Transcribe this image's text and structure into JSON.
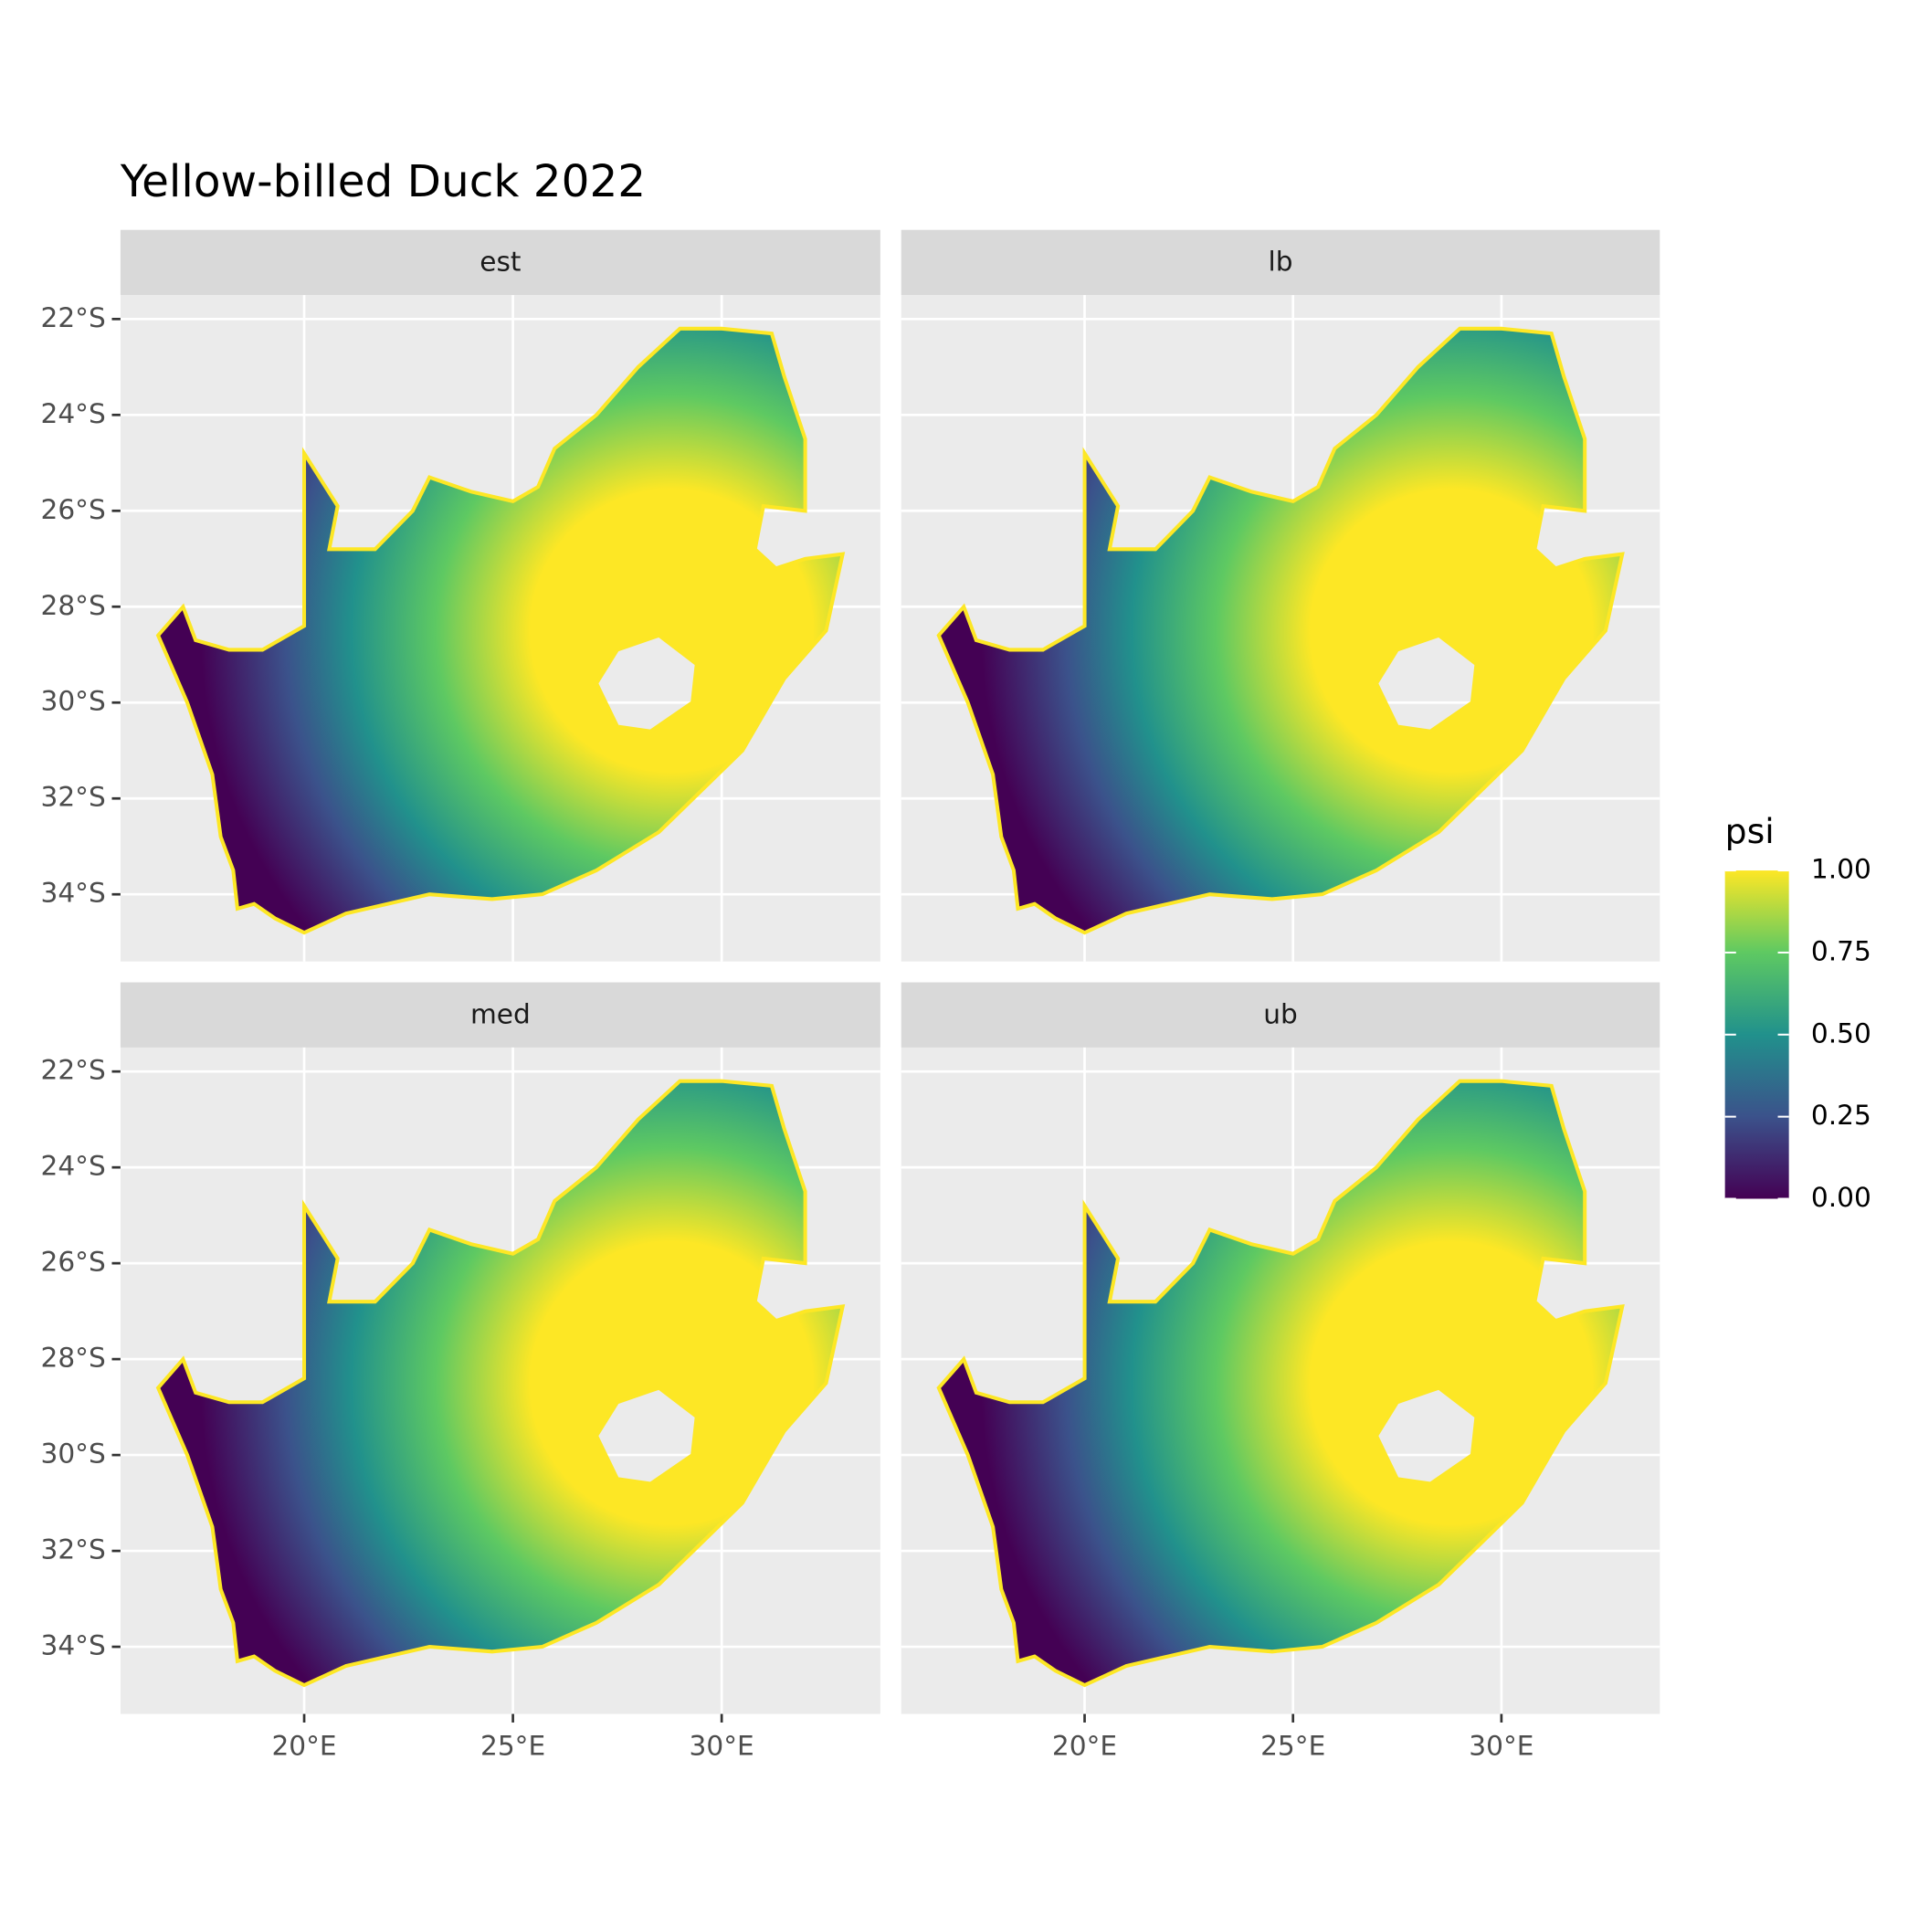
{
  "chart_data": {
    "type": "map",
    "title": "Yellow-billed Duck 2022",
    "facets": [
      "est",
      "lb",
      "med",
      "ub"
    ],
    "xlim": [
      15.6,
      33.8
    ],
    "ylim": [
      -35.4,
      -21.5
    ],
    "xticks": [
      {
        "value": 20,
        "label": "20°E"
      },
      {
        "value": 25,
        "label": "25°E"
      },
      {
        "value": 30,
        "label": "30°E"
      }
    ],
    "yticks": [
      {
        "value": -22,
        "label": "22°S"
      },
      {
        "value": -24,
        "label": "24°S"
      },
      {
        "value": -26,
        "label": "26°S"
      },
      {
        "value": -28,
        "label": "28°S"
      },
      {
        "value": -30,
        "label": "30°S"
      },
      {
        "value": -32,
        "label": "32°S"
      },
      {
        "value": -34,
        "label": "34°S"
      }
    ],
    "grid": true,
    "legend": {
      "title": "psi",
      "lim": [
        0,
        1
      ],
      "ticks": [
        {
          "value": 0,
          "label": "0.00"
        },
        {
          "value": 0.25,
          "label": "0.25"
        },
        {
          "value": 0.5,
          "label": "0.50"
        },
        {
          "value": 0.75,
          "label": "0.75"
        },
        {
          "value": 1,
          "label": "1.00"
        }
      ],
      "colors": [
        "#440154",
        "#3b528b",
        "#21918c",
        "#5ec962",
        "#fde725"
      ]
    }
  }
}
